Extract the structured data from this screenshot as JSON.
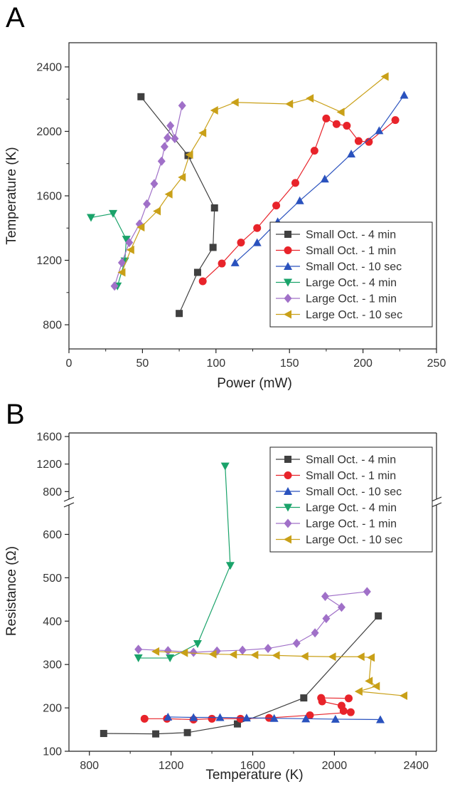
{
  "panels": {
    "a_label": "A",
    "b_label": "B"
  },
  "chart_data": [
    {
      "type": "line",
      "panel": "A",
      "xlabel": "Power (mW)",
      "ylabel": "Temperature (K)",
      "xlim": [
        0,
        250
      ],
      "ylim": [
        650,
        2550
      ],
      "xticks": [
        0,
        50,
        100,
        150,
        200,
        250
      ],
      "yticks": [
        800,
        1200,
        1600,
        2000,
        2400
      ],
      "legend_position": "lower-right",
      "series": [
        {
          "name": "Small Oct. - 4 min",
          "color": "#404040",
          "marker": "square",
          "x": [
            75,
            87.5,
            98,
            99,
            81,
            49
          ],
          "y": [
            870,
            1125,
            1280,
            1525,
            1850,
            2215
          ]
        },
        {
          "name": "Small Oct. - 1 min",
          "color": "#e8232a",
          "marker": "circle",
          "x": [
            91,
            104,
            117,
            128,
            141,
            154,
            167,
            175,
            182,
            189,
            197,
            204,
            222
          ],
          "y": [
            1070,
            1180,
            1310,
            1400,
            1540,
            1680,
            1880,
            2080,
            2045,
            2035,
            1940,
            1935,
            2070
          ]
        },
        {
          "name": "Small Oct. - 10 sec",
          "color": "#2a52be",
          "marker": "triangle-up",
          "x": [
            113,
            128,
            142,
            157,
            174,
            192,
            211,
            228
          ],
          "y": [
            1185,
            1310,
            1440,
            1570,
            1705,
            1860,
            2005,
            2225
          ]
        },
        {
          "name": "Large Oct. - 4 min",
          "color": "#1aa36a",
          "marker": "triangle-down",
          "x": [
            33,
            38,
            39,
            30,
            15
          ],
          "y": [
            1040,
            1195,
            1330,
            1490,
            1465
          ]
        },
        {
          "name": "Large Oct. - 1 min",
          "color": "#a070c8",
          "marker": "diamond",
          "x": [
            31,
            36,
            41,
            48,
            53,
            58,
            63,
            65,
            67,
            69,
            72,
            77
          ],
          "y": [
            1040,
            1185,
            1310,
            1425,
            1550,
            1675,
            1815,
            1905,
            1960,
            2035,
            1955,
            2160
          ]
        },
        {
          "name": "Large Oct. - 10 sec",
          "color": "#c9a018",
          "marker": "triangle-left",
          "x": [
            36,
            42,
            49,
            60,
            68,
            77,
            82,
            91,
            99,
            113,
            150,
            164,
            185,
            215
          ],
          "y": [
            1125,
            1265,
            1405,
            1505,
            1610,
            1715,
            1855,
            1990,
            2130,
            2180,
            2170,
            2205,
            2120,
            2340
          ]
        }
      ]
    },
    {
      "type": "line",
      "panel": "B",
      "xlabel": "Temperature (K)",
      "ylabel": "Resistance (Ω)",
      "xlim": [
        700,
        2500
      ],
      "xticks": [
        800,
        1200,
        1600,
        2000,
        2400
      ],
      "y_axis_break": true,
      "ylim_lower": [
        100,
        650
      ],
      "ylim_upper": [
        700,
        1600
      ],
      "yticks_lower": [
        100,
        200,
        300,
        400,
        500,
        600
      ],
      "yticks_upper": [
        800,
        1200,
        1600
      ],
      "legend_position": "top-right",
      "series": [
        {
          "name": "Small Oct. - 4 min",
          "color": "#404040",
          "marker": "square",
          "x": [
            870,
            1125,
            1280,
            1525,
            1850,
            2215
          ],
          "y": [
            141,
            140,
            143,
            163,
            223,
            412
          ]
        },
        {
          "name": "Small Oct. - 1 min",
          "color": "#e8232a",
          "marker": "circle",
          "x": [
            1070,
            1180,
            1310,
            1400,
            1540,
            1680,
            1880,
            2080,
            2045,
            2035,
            1940,
            1935,
            2070
          ],
          "y": [
            175,
            175,
            173,
            175,
            175,
            177,
            183,
            190,
            193,
            205,
            215,
            223,
            222
          ]
        },
        {
          "name": "Small Oct. - 10 sec",
          "color": "#2a52be",
          "marker": "triangle-up",
          "x": [
            1185,
            1310,
            1440,
            1570,
            1705,
            1860,
            2005,
            2225
          ],
          "y": [
            179,
            178,
            178,
            177,
            176,
            175,
            174,
            173
          ]
        },
        {
          "name": "Large Oct. - 4 min",
          "color": "#1aa36a",
          "marker": "triangle-down",
          "x": [
            1040,
            1195,
            1330,
            1490,
            1465
          ],
          "y": [
            315,
            315,
            348,
            528,
            1170
          ]
        },
        {
          "name": "Large Oct. - 1 min",
          "color": "#a070c8",
          "marker": "diamond",
          "x": [
            1040,
            1185,
            1310,
            1425,
            1550,
            1675,
            1815,
            1905,
            1960,
            2035,
            1955,
            2160
          ],
          "y": [
            335,
            332,
            328,
            331,
            333,
            337,
            349,
            373,
            406,
            432,
            457,
            468
          ]
        },
        {
          "name": "Large Oct. - 10 sec",
          "color": "#c9a018",
          "marker": "triangle-left",
          "x": [
            1125,
            1265,
            1405,
            1505,
            1610,
            1715,
            1855,
            1990,
            2130,
            2180,
            2170,
            2205,
            2120,
            2340
          ],
          "y": [
            330,
            327,
            324,
            323,
            322,
            321,
            319,
            318,
            318,
            316,
            262,
            250,
            238,
            228
          ]
        }
      ]
    }
  ]
}
